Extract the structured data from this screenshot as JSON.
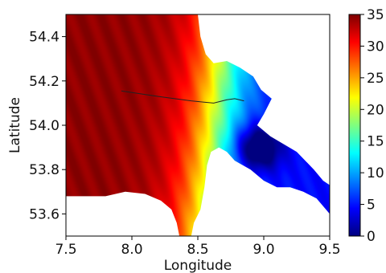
{
  "chart_data": {
    "type": "heatmap",
    "title": "",
    "xlabel": "Longitude",
    "ylabel": "Latitude",
    "xlim": [
      7.5,
      9.5
    ],
    "ylim": [
      53.5,
      54.5
    ],
    "xticks": [
      "7.5",
      "8.0",
      "8.5",
      "9.0",
      "9.5"
    ],
    "xtick_values": [
      7.5,
      8.0,
      8.5,
      9.0,
      9.5
    ],
    "yticks": [
      "53.6",
      "53.8",
      "54.0",
      "54.2",
      "54.4"
    ],
    "ytick_values": [
      53.6,
      53.8,
      54.0,
      54.2,
      54.4
    ],
    "grid": false,
    "colormap": "jet",
    "colorbar": {
      "min": 0,
      "max": 35,
      "ticks": [
        "0",
        "5",
        "10",
        "15",
        "20",
        "25",
        "30",
        "35"
      ],
      "tick_values": [
        0,
        5,
        10,
        15,
        20,
        25,
        30,
        35
      ]
    },
    "field_description": "water values highest (~32-35) offshore in west, decreasing toward the Elbe estuary in the east (~0-5); land shown in white",
    "isolines": [
      {
        "value_region": "channel",
        "points": [
          [
            7.92,
            54.155
          ],
          [
            8.2,
            54.13
          ],
          [
            8.45,
            54.11
          ],
          [
            8.62,
            54.1
          ],
          [
            8.72,
            54.115
          ],
          [
            8.78,
            54.12
          ],
          [
            8.85,
            54.11
          ]
        ]
      }
    ],
    "land_polygons": [
      {
        "name": "southern coast",
        "points": [
          [
            7.5,
            53.5
          ],
          [
            7.5,
            53.68
          ],
          [
            7.8,
            53.68
          ],
          [
            7.95,
            53.7
          ],
          [
            8.1,
            53.69
          ],
          [
            8.22,
            53.66
          ],
          [
            8.3,
            53.62
          ],
          [
            8.34,
            53.56
          ],
          [
            8.36,
            53.5
          ]
        ]
      },
      {
        "name": "central peninsula",
        "points": [
          [
            8.45,
            53.5
          ],
          [
            8.47,
            53.56
          ],
          [
            8.52,
            53.62
          ],
          [
            8.55,
            53.72
          ],
          [
            8.57,
            53.82
          ],
          [
            8.6,
            53.88
          ],
          [
            8.66,
            53.9
          ],
          [
            8.72,
            53.88
          ],
          [
            8.78,
            53.84
          ],
          [
            8.9,
            53.8
          ],
          [
            9.0,
            53.75
          ],
          [
            9.1,
            53.72
          ],
          [
            9.2,
            53.72
          ],
          [
            9.3,
            53.7
          ],
          [
            9.4,
            53.67
          ],
          [
            9.5,
            53.6
          ],
          [
            9.5,
            53.5
          ]
        ]
      },
      {
        "name": "northern coast",
        "points": [
          [
            8.5,
            54.5
          ],
          [
            8.52,
            54.4
          ],
          [
            8.56,
            54.32
          ],
          [
            8.62,
            54.28
          ],
          [
            8.72,
            54.29
          ],
          [
            8.82,
            54.26
          ],
          [
            8.92,
            54.22
          ],
          [
            8.98,
            54.16
          ],
          [
            9.06,
            54.12
          ],
          [
            9.0,
            54.05
          ],
          [
            8.95,
            54.0
          ],
          [
            9.05,
            53.95
          ],
          [
            9.25,
            53.88
          ],
          [
            9.38,
            53.8
          ],
          [
            9.45,
            53.75
          ],
          [
            9.5,
            53.73
          ],
          [
            9.5,
            54.5
          ]
        ]
      }
    ]
  }
}
